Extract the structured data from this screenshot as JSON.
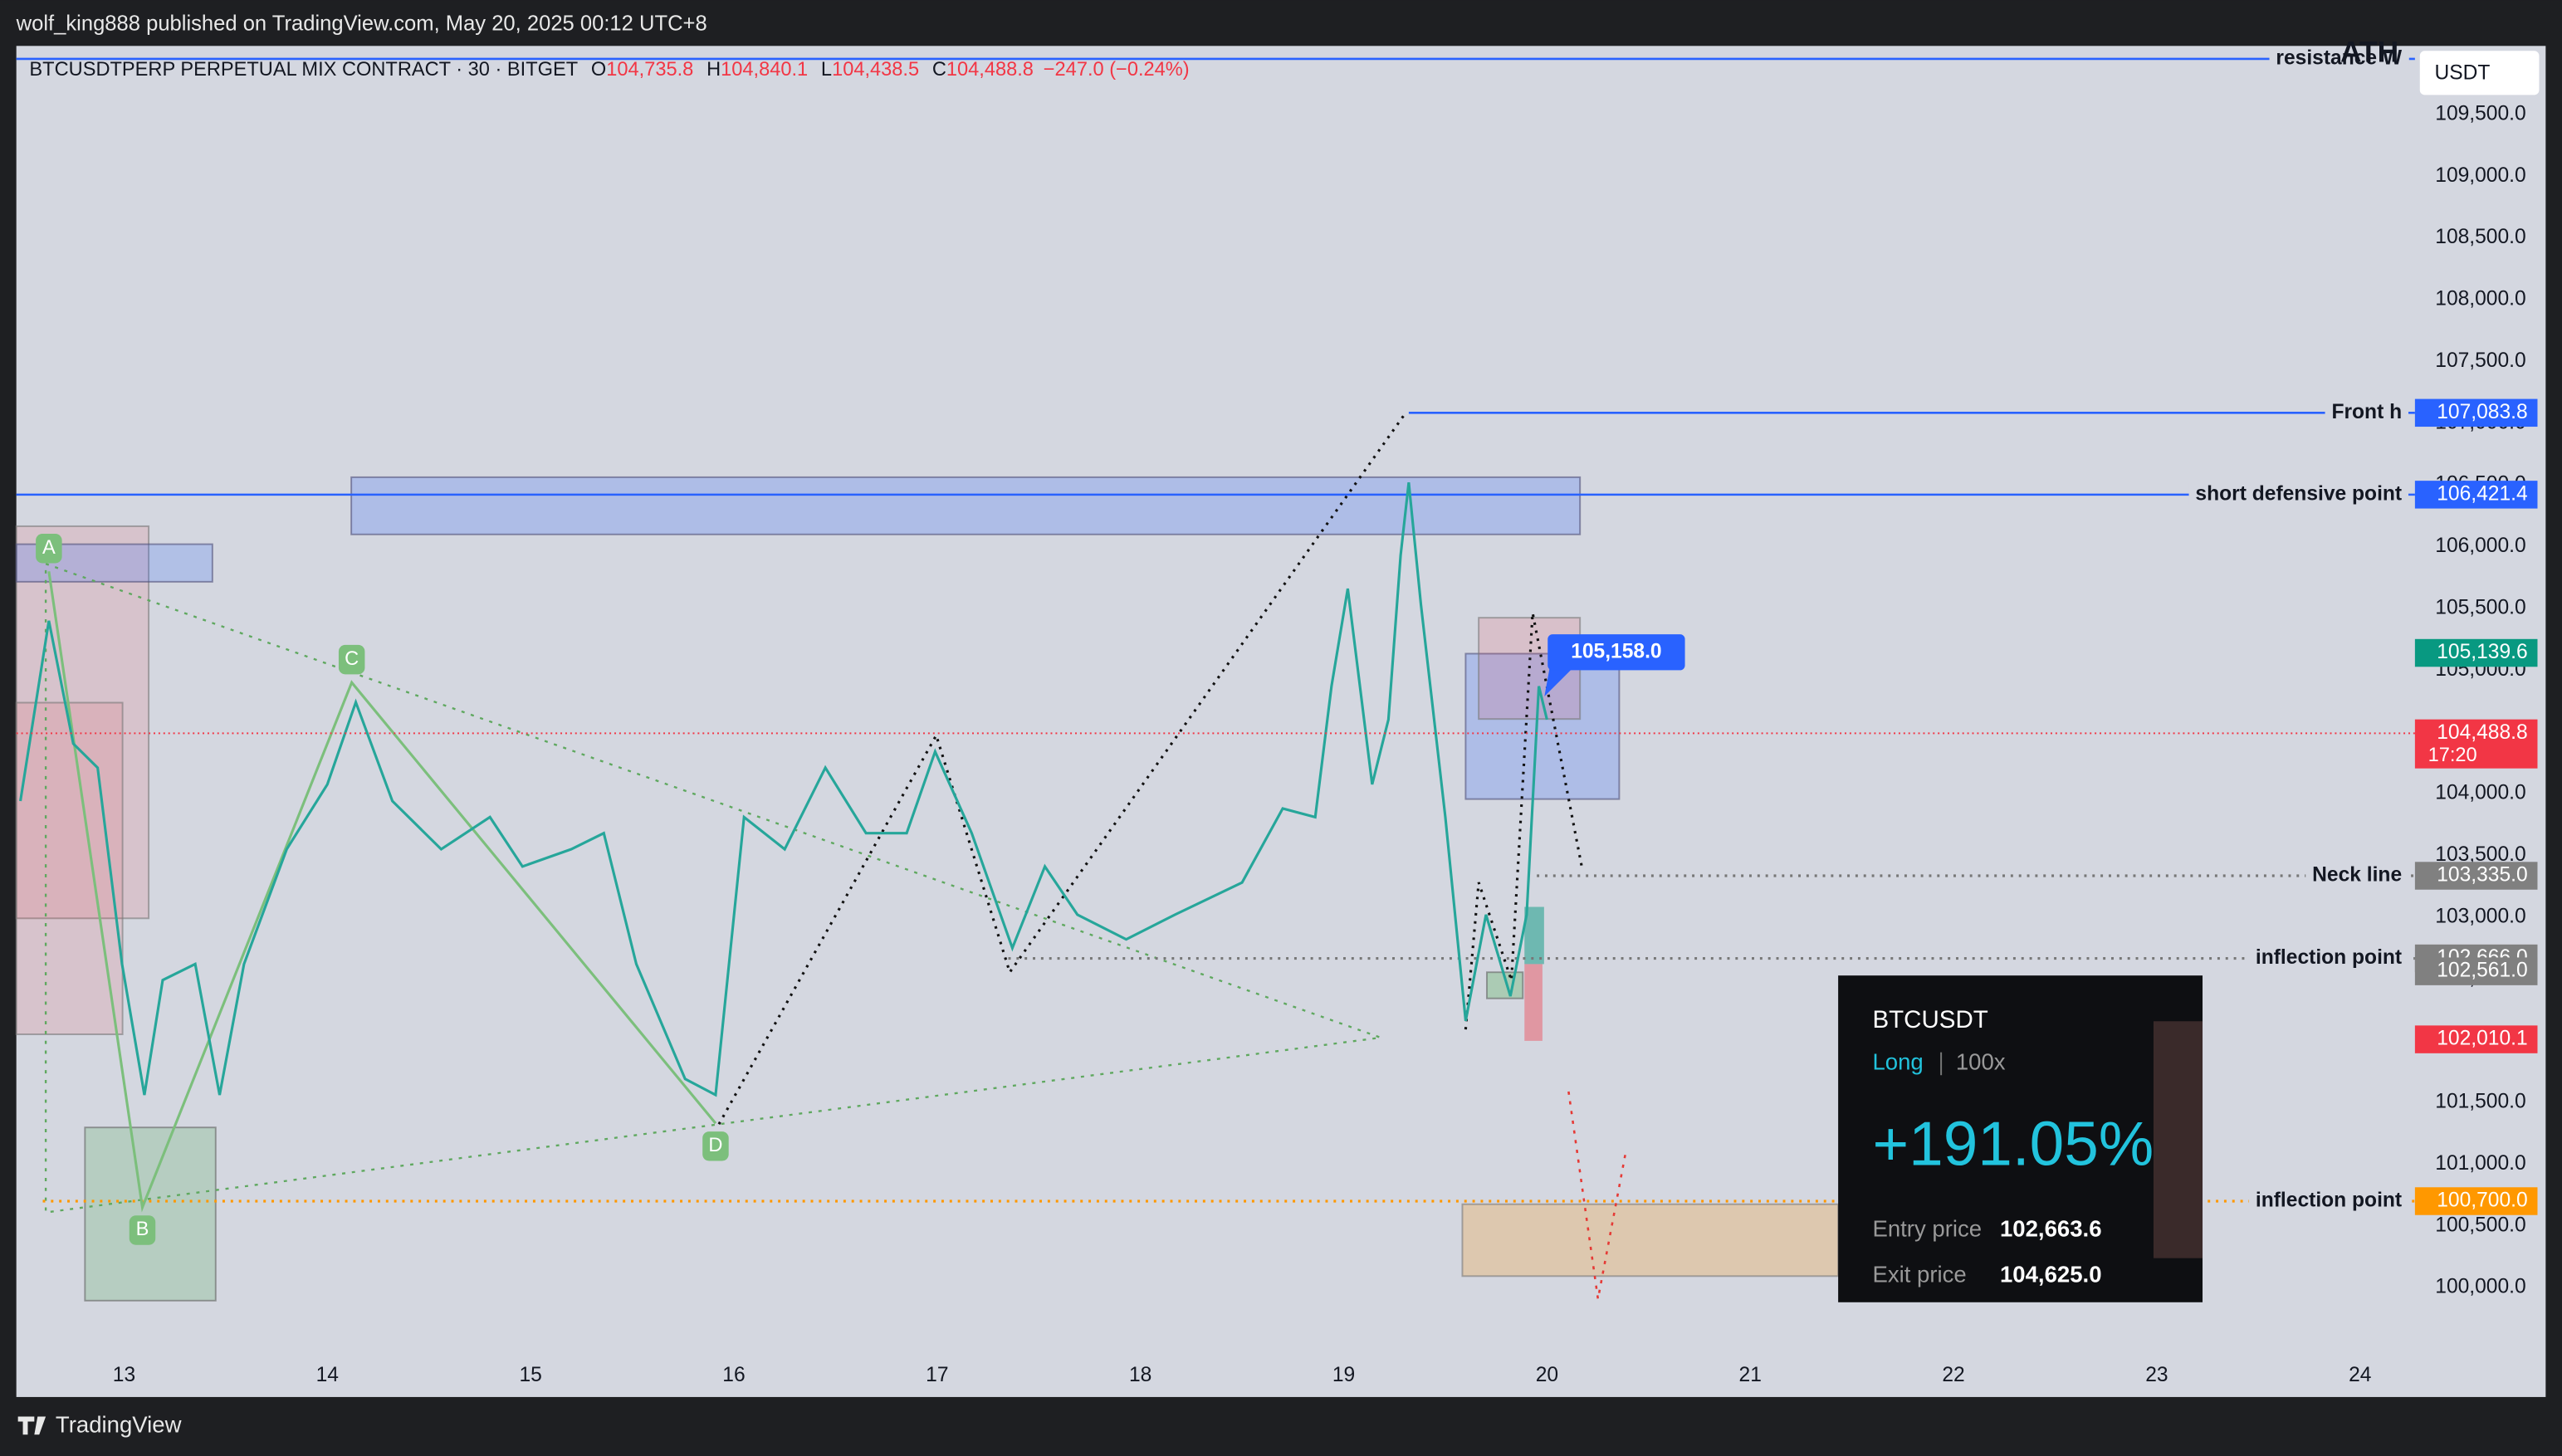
{
  "header": {
    "publisher": "wolf_king888 published on TradingView.com, May 20, 2025 00:12 UTC+8",
    "brand": "TradingView",
    "currency": "USDT"
  },
  "chart_data": {
    "type": "line",
    "title": "BTCUSDTPERP PERPETUAL MIX CONTRACT · 30 · BITGET",
    "ohlc": [
      {
        "prefix": "O",
        "value": 104735.8,
        "label": "104,735.8"
      },
      {
        "prefix": "H",
        "value": 104840.1,
        "label": "104,840.1"
      },
      {
        "prefix": "L",
        "value": 104438.5,
        "label": "104,438.5"
      },
      {
        "prefix": "C",
        "value": 104488.8,
        "label": "104,488.8"
      }
    ],
    "change": "−247.0 (−0.24%)",
    "color": "#26a69a",
    "x": [
      12.49,
      12.63,
      12.75,
      12.87,
      12.99,
      13.1,
      13.19,
      13.35,
      13.47,
      13.59,
      13.8,
      14.0,
      14.14,
      14.32,
      14.56,
      14.8,
      14.96,
      15.2,
      15.36,
      15.52,
      15.76,
      15.91,
      16.05,
      16.25,
      16.45,
      16.65,
      16.85,
      16.99,
      17.17,
      17.37,
      17.53,
      17.69,
      17.93,
      18.17,
      18.5,
      18.7,
      18.86,
      18.94,
      19.02,
      19.14,
      19.22,
      19.28,
      19.32,
      19.38,
      19.5,
      19.6,
      19.7,
      19.82,
      19.9,
      19.96,
      20.0
    ],
    "values": [
      103940,
      105400,
      104405,
      104210,
      102620,
      101560,
      102490,
      102620,
      101560,
      102620,
      103550,
      104075,
      104740,
      103940,
      103550,
      103810,
      103410,
      103550,
      103680,
      102620,
      101690,
      101560,
      103810,
      103550,
      104210,
      103680,
      103680,
      104340,
      103680,
      102750,
      103410,
      103020,
      102820,
      103020,
      103280,
      103880,
      103810,
      104870,
      105660,
      104075,
      104600,
      105930,
      106520,
      105530,
      103810,
      102160,
      103020,
      102360,
      103020,
      104870,
      104600
    ],
    "xlim": [
      12.47,
      24.27
    ],
    "ylim": [
      99114,
      110055
    ],
    "xticks": [
      13,
      14,
      15,
      16,
      17,
      18,
      19,
      20,
      21,
      22,
      23,
      24
    ],
    "yticks": [
      {
        "value": 100000,
        "label": "100,000.0"
      },
      {
        "value": 100500,
        "label": "100,500.0"
      },
      {
        "value": 101000,
        "label": "101,000.0"
      },
      {
        "value": 101500,
        "label": "101,500.0"
      },
      {
        "value": 102000,
        "label": "102,000.0"
      },
      {
        "value": 102500,
        "label": "102,500.0"
      },
      {
        "value": 103000,
        "label": "103,000.0"
      },
      {
        "value": 103500,
        "label": "103,500.0"
      },
      {
        "value": 104000,
        "label": "104,000.0"
      },
      {
        "value": 104500,
        "label": "104,500.0"
      },
      {
        "value": 105000,
        "label": "105,000.0"
      },
      {
        "value": 105500,
        "label": "105,500.0"
      },
      {
        "value": 106000,
        "label": "106,000.0"
      },
      {
        "value": 106500,
        "label": "106,500.0"
      },
      {
        "value": 107000,
        "label": "107,000.0"
      },
      {
        "value": 107500,
        "label": "107,500.0"
      },
      {
        "value": 108000,
        "label": "108,000.0"
      },
      {
        "value": 108500,
        "label": "108,500.0"
      },
      {
        "value": 109000,
        "label": "109,000.0"
      },
      {
        "value": 109500,
        "label": "109,500.0"
      }
    ],
    "grid": false,
    "levels": [
      {
        "label": "resistance W",
        "value": 109950,
        "start": 12.47,
        "color": "#2962ff",
        "style": "solid"
      },
      {
        "label": "Front h",
        "value": 107083.8,
        "start": 19.32,
        "color": "#2962ff",
        "style": "solid"
      },
      {
        "label": "short defensive point",
        "value": 106421.4,
        "start": 12.47,
        "color": "#2962ff",
        "style": "solid"
      },
      {
        "label": "Neck line",
        "value": 103335.0,
        "start": 19.95,
        "color": "#777777",
        "style": "dotted"
      },
      {
        "label": "inflection point",
        "value": 102666.0,
        "start": 17.35,
        "color": "#777777",
        "style": "dotted"
      },
      {
        "label": "inflection point",
        "value": 100700.0,
        "start": 12.6,
        "color": "#ff9800",
        "style": "dotted"
      }
    ],
    "ath_label": "ATH",
    "price_labels": [
      {
        "value": 107083.8,
        "label": "107,083.8",
        "color": "#2962ff"
      },
      {
        "value": 106421.4,
        "label": "106,421.4",
        "color": "#2962ff"
      },
      {
        "value": 105139.6,
        "label": "105,139.6",
        "color": "#089981"
      },
      {
        "value": 104488.8,
        "label": "104,488.8",
        "color": "#f23645",
        "countdown": "17:20",
        "dotted_line": true
      },
      {
        "value": 103335.0,
        "label": "103,335.0",
        "color": "#808080"
      },
      {
        "value": 102666.0,
        "label": "102,666.0",
        "color": "#808080"
      },
      {
        "value": 102561.0,
        "label": "102,561.0",
        "color": "#808080"
      },
      {
        "value": 102010.1,
        "label": "102,010.1",
        "color": "#f23645"
      },
      {
        "value": 100700.0,
        "label": "100,700.0",
        "color": "#ff9800"
      }
    ],
    "callout": {
      "x": 20.1,
      "value": 105158.0,
      "label": "105,158.0"
    },
    "pattern": [
      {
        "label": "A",
        "x": 12.63,
        "value": 105800
      },
      {
        "label": "B",
        "x": 13.09,
        "value": 100650
      },
      {
        "label": "C",
        "x": 14.12,
        "value": 104900
      },
      {
        "label": "D",
        "x": 15.91,
        "value": 101330
      }
    ]
  },
  "position_card": {
    "symbol": "BTCUSDT",
    "side": "Long",
    "leverage": "100x",
    "pnl": "+191.05%",
    "entry_label": "Entry price",
    "entry": "102,663.6",
    "exit_label": "Exit price",
    "exit": "104,625.0"
  }
}
